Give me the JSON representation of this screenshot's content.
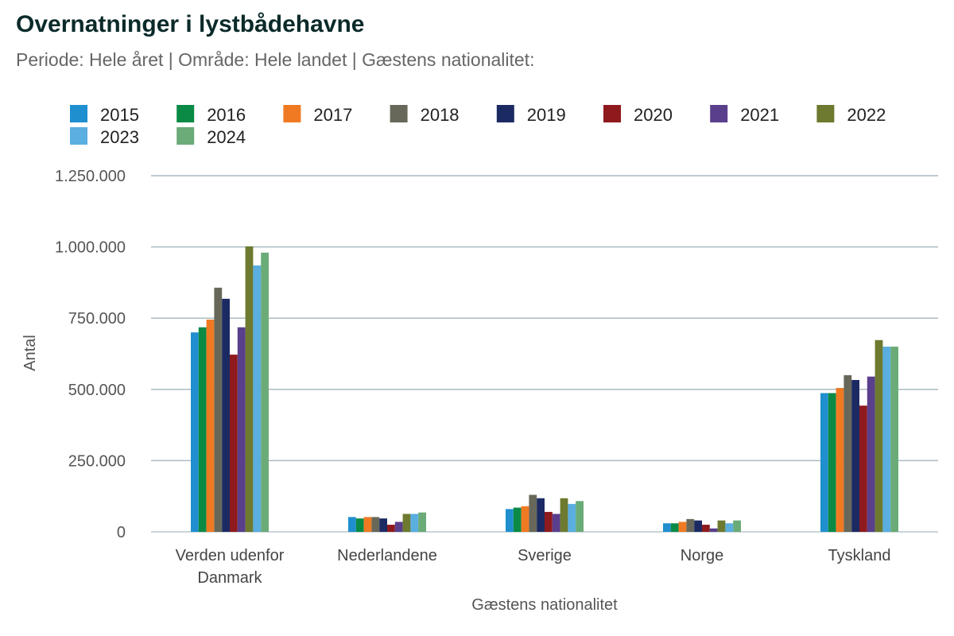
{
  "header": {
    "title": "Overnatninger i lystbådehavne",
    "subtitle": "Periode: Hele året | Område: Hele landet | Gæstens nationalitet:"
  },
  "chart_data": {
    "type": "bar",
    "title": "Overnatninger i lystbådehavne",
    "subtitle": "Periode: Hele året | Område: Hele landet | Gæstens nationalitet:",
    "xlabel": "Gæstens nationalitet",
    "ylabel": "Antal",
    "ylim": [
      0,
      1250000
    ],
    "yticks": [
      0,
      250000,
      500000,
      750000,
      1000000,
      1250000
    ],
    "ytick_labels": [
      "0",
      "250.000",
      "500.000",
      "750.000",
      "1.000.000",
      "1.250.000"
    ],
    "grid": true,
    "legend_position": "top",
    "categories": [
      [
        "Verden udenfor",
        "Danmark"
      ],
      [
        "Nederlandene"
      ],
      [
        "Sverige"
      ],
      [
        "Norge"
      ],
      [
        "Tyskland"
      ]
    ],
    "series": [
      {
        "name": "2015",
        "color": "#1f8fcf",
        "values": [
          700000,
          52000,
          80000,
          30000,
          487000
        ]
      },
      {
        "name": "2016",
        "color": "#0a8a45",
        "values": [
          718000,
          47000,
          85000,
          30000,
          487000
        ]
      },
      {
        "name": "2017",
        "color": "#f07a22",
        "values": [
          745000,
          52000,
          90000,
          35000,
          505000
        ]
      },
      {
        "name": "2018",
        "color": "#68685a",
        "values": [
          857000,
          52000,
          130000,
          45000,
          550000
        ]
      },
      {
        "name": "2019",
        "color": "#1c2a63",
        "values": [
          818000,
          47000,
          118000,
          40000,
          533000
        ]
      },
      {
        "name": "2020",
        "color": "#8e1a1e",
        "values": [
          622000,
          25000,
          70000,
          25000,
          443000
        ]
      },
      {
        "name": "2021",
        "color": "#5a3f8c",
        "values": [
          718000,
          35000,
          63000,
          12000,
          545000
        ]
      },
      {
        "name": "2022",
        "color": "#6d7a2f",
        "values": [
          1002000,
          63000,
          118000,
          40000,
          673000
        ]
      },
      {
        "name": "2023",
        "color": "#5aaee0",
        "values": [
          935000,
          63000,
          98000,
          30000,
          650000
        ]
      },
      {
        "name": "2024",
        "color": "#6aab78",
        "values": [
          980000,
          68000,
          108000,
          40000,
          650000
        ]
      }
    ]
  }
}
